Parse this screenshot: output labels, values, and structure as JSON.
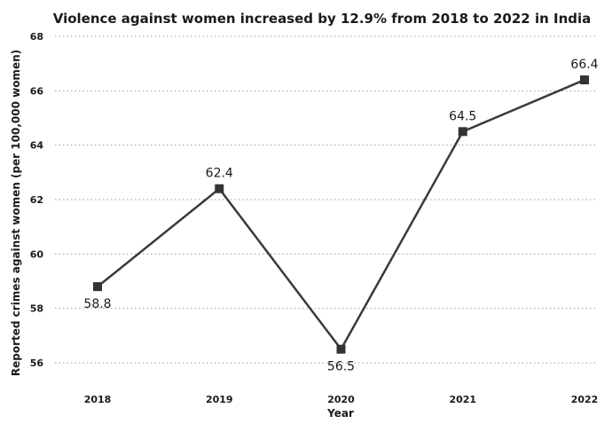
{
  "chart_data": {
    "type": "line",
    "title": "Violence against women increased by 12.9% from 2018 to 2022 in India",
    "xlabel": "Year",
    "ylabel": "Reported crimes against women (per 100,000 women)",
    "categories": [
      "2018",
      "2019",
      "2020",
      "2021",
      "2022"
    ],
    "series": [
      {
        "values": [
          58.8,
          62.4,
          56.5,
          64.5,
          66.4
        ],
        "data_labels": [
          "58.8",
          "62.4",
          "56.5",
          "64.5",
          "66.4"
        ]
      }
    ],
    "data_label_positions": [
      "below",
      "above",
      "below",
      "above",
      "above"
    ],
    "ylim": [
      56,
      68
    ],
    "yticks": [
      "56",
      "58",
      "60",
      "62",
      "64",
      "66",
      "68"
    ],
    "grid": true,
    "legend": "none",
    "line_color": "#3a3a3a",
    "marker_color": "#333333",
    "marker_shape": "square"
  }
}
